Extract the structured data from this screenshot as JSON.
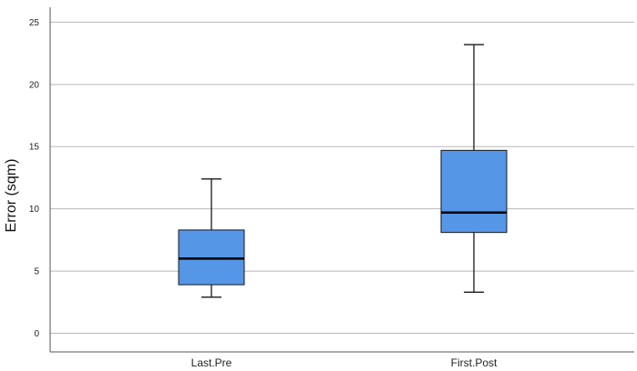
{
  "chart_data": {
    "type": "boxplot",
    "title": "",
    "xlabel": "",
    "ylabel": "Error (sqm)",
    "ylim": [
      -1.5,
      26.2
    ],
    "yticks": [
      0,
      5,
      10,
      15,
      20,
      25
    ],
    "grid": true,
    "colors": {
      "box_fill": "#5596e6",
      "stroke": "#1a1a1a",
      "grid": "#b8b8b8",
      "axis": "#555555"
    },
    "categories": [
      "Last.Pre",
      "First.Post"
    ],
    "boxes": [
      {
        "category": "Last.Pre",
        "whisker_low": 2.9,
        "q1": 3.9,
        "median": 6.0,
        "q3": 8.3,
        "whisker_high": 12.4
      },
      {
        "category": "First.Post",
        "whisker_low": 3.3,
        "q1": 8.1,
        "median": 9.7,
        "q3": 14.7,
        "whisker_high": 23.2
      }
    ]
  }
}
